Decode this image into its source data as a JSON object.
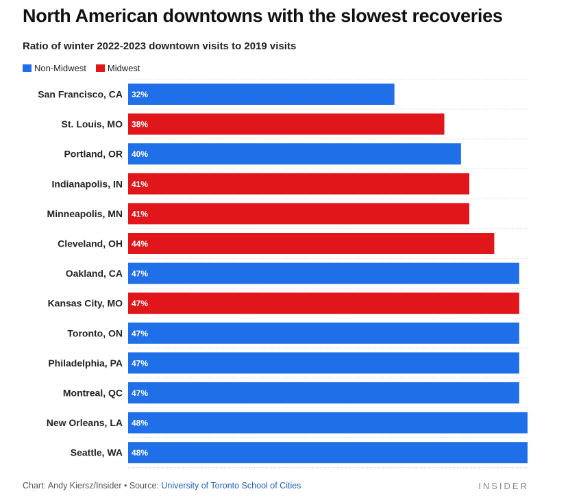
{
  "chart_data": {
    "type": "bar",
    "orientation": "horizontal",
    "title": "North American downtowns with the slowest recoveries",
    "subtitle": "Ratio of winter 2022-2023 downtown visits to 2019 visits",
    "legend": [
      {
        "name": "Non-Midwest",
        "color": "#1f6fe8"
      },
      {
        "name": "Midwest",
        "color": "#e0161b"
      }
    ],
    "categories": [
      "San Francisco, CA",
      "St. Louis, MO",
      "Portland, OR",
      "Indianapolis, IN",
      "Minneapolis, MN",
      "Cleveland, OH",
      "Oakland, CA",
      "Kansas City, MO",
      "Toronto, ON",
      "Philadelphia, PA",
      "Montreal, QC",
      "New Orleans, LA",
      "Seattle, WA"
    ],
    "values": [
      32,
      38,
      40,
      41,
      41,
      44,
      47,
      47,
      47,
      47,
      47,
      48,
      48
    ],
    "value_labels": [
      "32%",
      "38%",
      "40%",
      "41%",
      "41%",
      "44%",
      "47%",
      "47%",
      "47%",
      "47%",
      "47%",
      "48%",
      "48%"
    ],
    "groups": [
      "Non-Midwest",
      "Midwest",
      "Non-Midwest",
      "Midwest",
      "Midwest",
      "Midwest",
      "Non-Midwest",
      "Midwest",
      "Non-Midwest",
      "Non-Midwest",
      "Non-Midwest",
      "Non-Midwest",
      "Non-Midwest"
    ],
    "xlim": [
      0,
      48
    ],
    "grid": true
  },
  "footer": {
    "credit": "Chart: Andy Kiersz/Insider • Source: ",
    "source": "University of Toronto School of Cities",
    "brand": "INSIDER"
  }
}
